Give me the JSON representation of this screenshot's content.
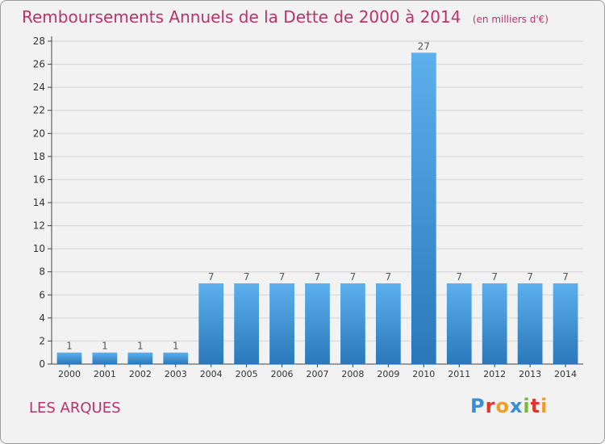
{
  "header": {
    "title": "Remboursements Annuels de la Dette de 2000 à 2014",
    "unit": "(en milliers d'€)"
  },
  "footer": {
    "commune": "LES ARQUES"
  },
  "logo": {
    "text": "Proxiti",
    "letters": [
      {
        "char": "P",
        "color": "#3a8ed8"
      },
      {
        "char": "r",
        "color": "#e8332a"
      },
      {
        "char": "o",
        "color": "#f0a020"
      },
      {
        "char": "x",
        "color": "#3a8ed8"
      },
      {
        "char": "i",
        "color": "#78b83a"
      },
      {
        "char": "t",
        "color": "#e8332a"
      },
      {
        "char": "i",
        "color": "#f0a020"
      }
    ]
  },
  "colors": {
    "bar_light": "#5cb0ec",
    "bar_dark": "#2a78ba",
    "title": "#b8336a",
    "grid": "#d4d4d4"
  },
  "chart_data": {
    "type": "bar",
    "title": "Remboursements Annuels de la Dette de 2000 à 2014",
    "categories": [
      "2000",
      "2001",
      "2002",
      "2003",
      "2004",
      "2005",
      "2006",
      "2007",
      "2008",
      "2009",
      "2010",
      "2011",
      "2012",
      "2013",
      "2014"
    ],
    "values": [
      1,
      1,
      1,
      1,
      7,
      7,
      7,
      7,
      7,
      7,
      27,
      7,
      7,
      7,
      7
    ],
    "data_labels": [
      "1",
      "1",
      "1",
      "1",
      "7",
      "7",
      "7",
      "7",
      "7",
      "7",
      "27",
      "7",
      "7",
      "7",
      "7"
    ],
    "ylim": [
      0,
      28
    ],
    "y_ticks": [
      0,
      2,
      4,
      6,
      8,
      10,
      12,
      14,
      16,
      18,
      20,
      22,
      24,
      26,
      28
    ],
    "grid": true,
    "legend": "none"
  }
}
